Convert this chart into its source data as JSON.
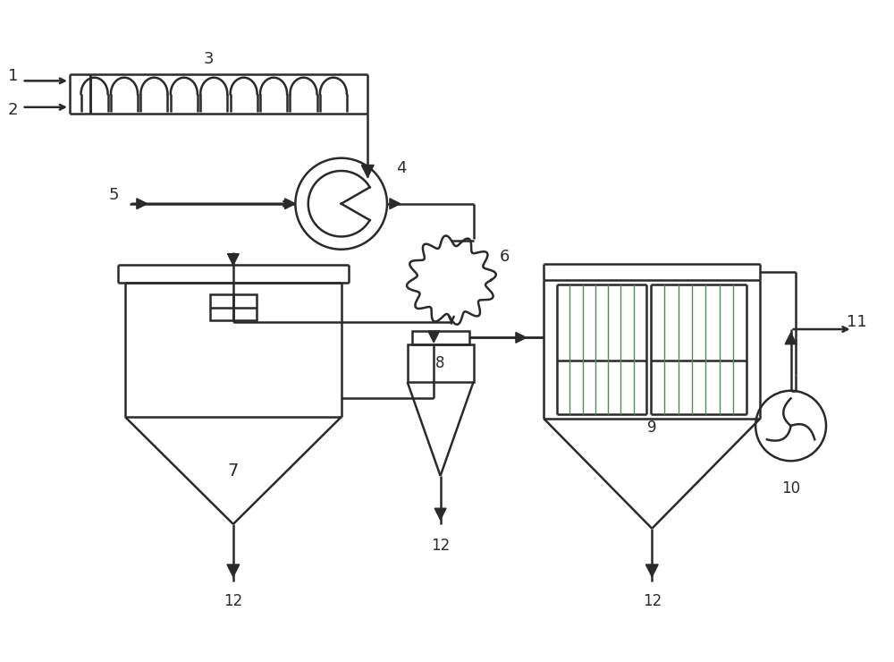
{
  "bg_color": "#ffffff",
  "line_color": "#2a2a2a",
  "line_width": 1.8,
  "fig_width": 10.0,
  "fig_height": 7.4,
  "coil_color": "#2a2a2a",
  "filter_bag_color": "#5a8a5a"
}
